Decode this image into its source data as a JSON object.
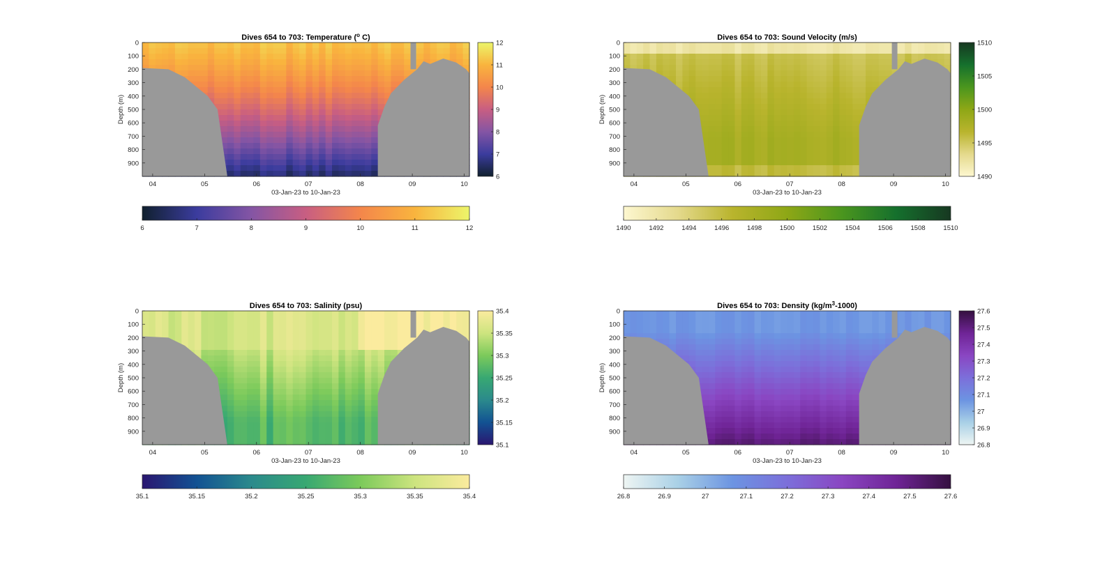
{
  "figure": {
    "background": "#ffffff",
    "land_color": "#999999",
    "xtick_labels": [
      "04",
      "05",
      "06",
      "07",
      "08",
      "09",
      "10"
    ],
    "xlabel": "03-Jan-23 to 10-Jan-23",
    "ylabel": "Depth (m)",
    "ytick_labels": [
      "0",
      "100",
      "200",
      "300",
      "400",
      "500",
      "600",
      "700",
      "800",
      "900"
    ]
  },
  "chart_data": [
    {
      "type": "heatmap",
      "id": "temperature",
      "title": "Dives 654 to 703: Temperature (° C)",
      "title_parts": [
        "Dives 654 to 703: Temperature (",
        "o",
        " C)"
      ],
      "xlabel": "03-Jan-23 to 10-Jan-23",
      "ylabel": "Depth (m)",
      "x_ticks": [
        "04",
        "05",
        "06",
        "07",
        "08",
        "09",
        "10"
      ],
      "xlim_days": [
        3.8,
        10.1
      ],
      "ylim": [
        0,
        1000
      ],
      "y_direction": "reversed",
      "y_ticks": [
        0,
        100,
        200,
        300,
        400,
        500,
        600,
        700,
        800,
        900
      ],
      "colorbar": {
        "range": [
          6,
          12
        ],
        "ticks": [
          "6",
          "7",
          "8",
          "9",
          "10",
          "11",
          "12"
        ],
        "colormap": [
          "#10202e",
          "#3b3c9e",
          "#8455a4",
          "#c85e82",
          "#f4864b",
          "#f9b43e",
          "#ecf56a"
        ]
      },
      "profile": {
        "surface": 11.2,
        "deep": 6.5
      }
    },
    {
      "type": "heatmap",
      "id": "sound_velocity",
      "title": "Dives 654 to 703: Sound Velocity (m/s)",
      "title_parts": [
        "Dives 654 to 703: Sound Velocity (m/s)"
      ],
      "xlabel": "03-Jan-23 to 10-Jan-23",
      "ylabel": "Depth (m)",
      "x_ticks": [
        "04",
        "05",
        "06",
        "07",
        "08",
        "09",
        "10"
      ],
      "xlim_days": [
        3.8,
        10.1
      ],
      "ylim": [
        0,
        1000
      ],
      "y_direction": "reversed",
      "y_ticks": [
        0,
        100,
        200,
        300,
        400,
        500,
        600,
        700,
        800,
        900
      ],
      "colorbar": {
        "range": [
          1490,
          1510
        ],
        "ticks": [
          "1490",
          "1492",
          "1494",
          "1496",
          "1498",
          "1500",
          "1502",
          "1504",
          "1506",
          "1508",
          "1510"
        ],
        "right_ticks": [
          "1490",
          "1495",
          "1500",
          "1505",
          "1510"
        ],
        "colormap": [
          "#fdf7d0",
          "#e4d98c",
          "#b9b42d",
          "#8ea716",
          "#4b961e",
          "#15702d",
          "#173821"
        ]
      },
      "profile": {
        "surface": 1495,
        "deep": 1498
      }
    },
    {
      "type": "heatmap",
      "id": "salinity",
      "title": "Dives 654 to 703: Salinity (psu)",
      "title_parts": [
        "Dives 654 to 703: Salinity (psu)"
      ],
      "xlabel": "03-Jan-23 to 10-Jan-23",
      "ylabel": "Depth (m)",
      "x_ticks": [
        "04",
        "05",
        "06",
        "07",
        "08",
        "09",
        "10"
      ],
      "xlim_days": [
        3.8,
        10.1
      ],
      "ylim": [
        0,
        1000
      ],
      "y_direction": "reversed",
      "y_ticks": [
        0,
        100,
        200,
        300,
        400,
        500,
        600,
        700,
        800,
        900
      ],
      "colorbar": {
        "range": [
          35.1,
          35.4
        ],
        "ticks": [
          "35.1",
          "35.15",
          "35.2",
          "35.25",
          "35.3",
          "35.35",
          "35.4"
        ],
        "colormap": [
          "#2a1670",
          "#125293",
          "#2b8a8c",
          "#38a872",
          "#7cca5b",
          "#cde47f",
          "#fbeb9e"
        ]
      },
      "profile": {
        "surface": 35.36,
        "deep": 35.27
      }
    },
    {
      "type": "heatmap",
      "id": "density",
      "title": "Dives 654 to 703: Density (kg/m³-1000)",
      "title_parts": [
        "Dives 654 to 703: Density (kg/m",
        "3",
        "-1000)"
      ],
      "xlabel": "03-Jan-23 to 10-Jan-23",
      "ylabel": "Depth (m)",
      "x_ticks": [
        "04",
        "05",
        "06",
        "07",
        "08",
        "09",
        "10"
      ],
      "xlim_days": [
        3.8,
        10.1
      ],
      "ylim": [
        0,
        1000
      ],
      "y_direction": "reversed",
      "y_ticks": [
        0,
        100,
        200,
        300,
        400,
        500,
        600,
        700,
        800,
        900
      ],
      "colorbar": {
        "range": [
          26.8,
          27.6
        ],
        "ticks": [
          "26.8",
          "26.9",
          "27",
          "27.1",
          "27.2",
          "27.3",
          "27.4",
          "27.5",
          "27.6"
        ],
        "colormap": [
          "#eef5f3",
          "#a9d0e6",
          "#6c94e2",
          "#7c6fda",
          "#8a46c2",
          "#6f2496",
          "#351040"
        ]
      },
      "profile": {
        "surface": 27.06,
        "deep": 27.52
      }
    }
  ]
}
